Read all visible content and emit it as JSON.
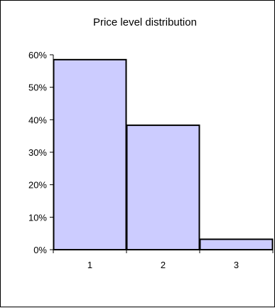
{
  "chart_data": {
    "type": "bar",
    "title": "Price level distribution",
    "categories": [
      "1",
      "2",
      "3"
    ],
    "values": [
      0.585,
      0.383,
      0.032
    ],
    "ylim": [
      0,
      0.6
    ],
    "yticks": [
      0,
      0.1,
      0.2,
      0.3,
      0.4,
      0.5,
      0.6
    ],
    "ytick_labels": [
      "0%",
      "10%",
      "20%",
      "30%",
      "40%",
      "50%",
      "60%"
    ],
    "xlabel": "",
    "ylabel": "",
    "grid": false,
    "legend": "none",
    "colors": {
      "bar_fill": "#ccccff",
      "bar_stroke": "#000000"
    }
  }
}
